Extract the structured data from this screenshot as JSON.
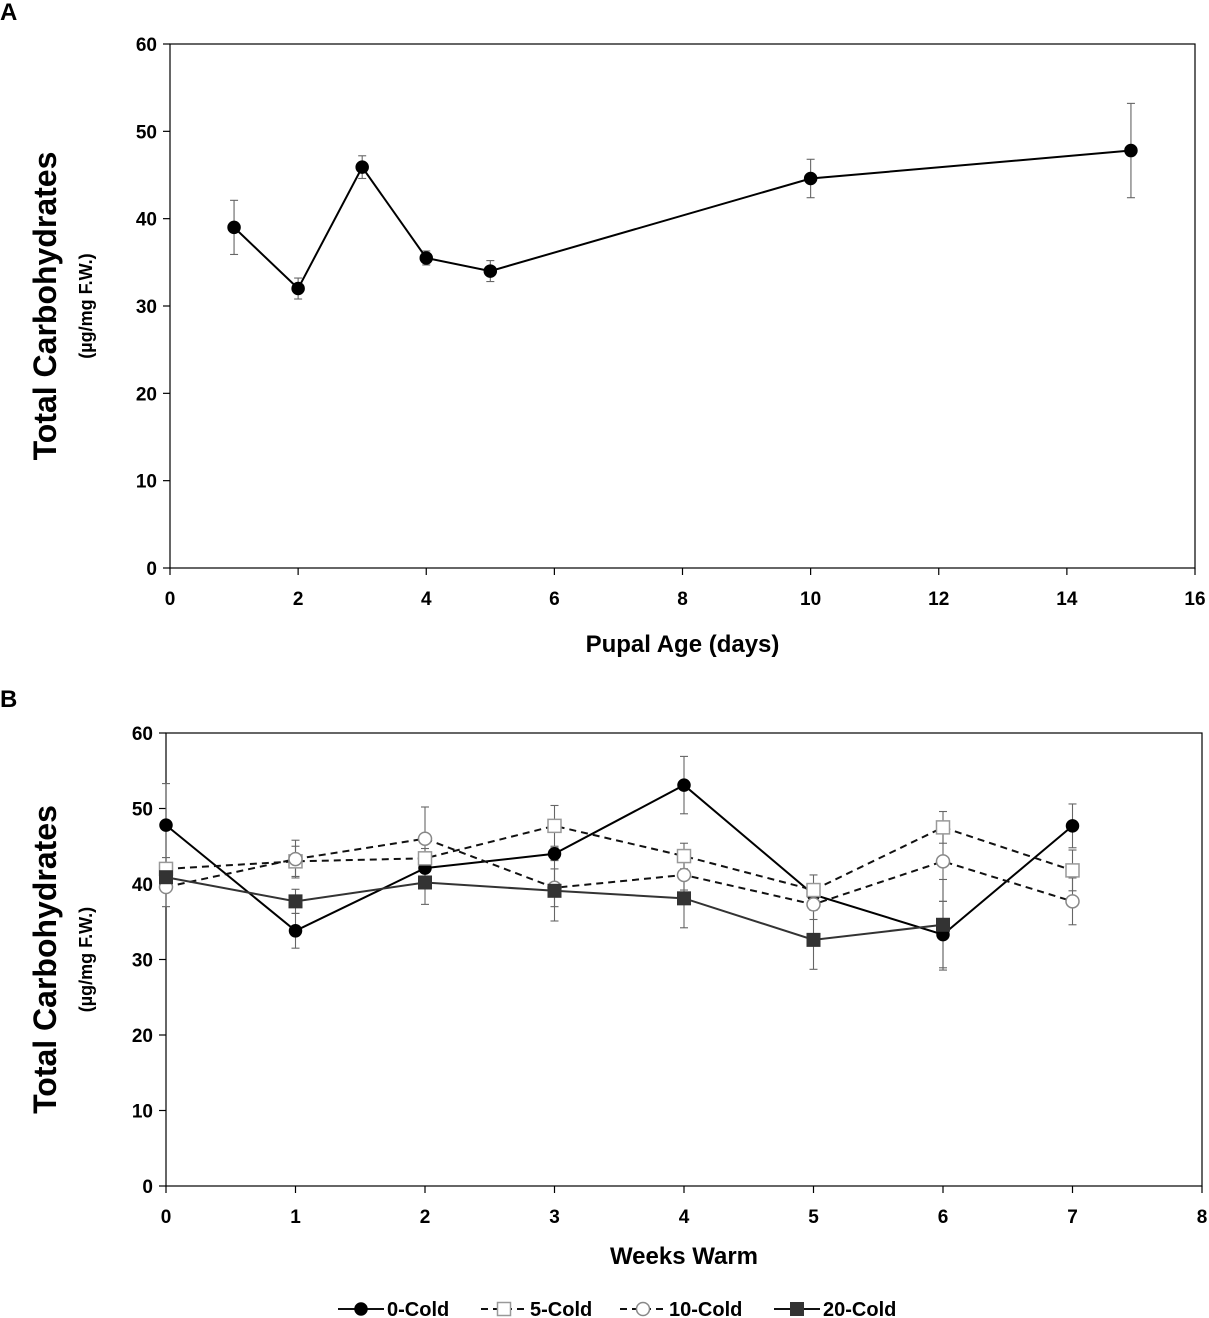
{
  "chart_data": [
    {
      "panel": "A",
      "type": "line",
      "title": "",
      "xlabel": "Pupal Age (days)",
      "ylabel": "Total Carbohydrates",
      "ylabel_unit": "(µg/mg F.W.)",
      "xlim": [
        0,
        16
      ],
      "ylim": [
        0,
        60
      ],
      "xticks": [
        "0",
        "2",
        "4",
        "6",
        "8",
        "10",
        "12",
        "14",
        "16"
      ],
      "yticks": [
        "0",
        "10",
        "20",
        "30",
        "40",
        "50",
        "60"
      ],
      "grid": false,
      "series": [
        {
          "name": "Total Carbohydrates",
          "color": "#000000",
          "marker": "circle-filled",
          "dash": "solid",
          "x": [
            1,
            2,
            3,
            4,
            5,
            10,
            15
          ],
          "values": [
            39.0,
            32.0,
            45.9,
            35.5,
            34.0,
            44.6,
            47.8
          ],
          "errors": [
            3.1,
            1.2,
            1.3,
            0.8,
            1.2,
            2.2,
            5.4
          ]
        }
      ]
    },
    {
      "panel": "B",
      "type": "line",
      "title": "",
      "xlabel": "Weeks Warm",
      "ylabel": "Total Carbohydrates",
      "ylabel_unit": "(µg/mg F.W.)",
      "xlim": [
        0,
        8
      ],
      "ylim": [
        0,
        60
      ],
      "xticks": [
        "0",
        "1",
        "2",
        "3",
        "4",
        "5",
        "6",
        "7",
        "8"
      ],
      "yticks": [
        "0",
        "10",
        "20",
        "30",
        "40",
        "50",
        "60"
      ],
      "grid": false,
      "legend_position": "bottom",
      "series": [
        {
          "name": "0-Cold",
          "color": "#000000",
          "marker": "circle-filled",
          "dash": "solid",
          "x": [
            0,
            1,
            2,
            3,
            4,
            5,
            6,
            7
          ],
          "values": [
            47.8,
            33.8,
            42.1,
            44.0,
            53.1,
            38.6,
            33.3,
            47.7
          ],
          "errors": [
            5.5,
            2.3,
            2.0,
            0.8,
            3.8,
            1.3,
            4.4,
            2.9
          ]
        },
        {
          "name": "5-Cold",
          "color": "#888888",
          "marker": "square-open",
          "dash": "dashed",
          "x": [
            0,
            1,
            2,
            3,
            4,
            5,
            6,
            7
          ],
          "values": [
            42.0,
            43.0,
            43.4,
            47.7,
            43.7,
            39.2,
            47.5,
            41.8
          ],
          "errors": [
            1.5,
            2.0,
            1.3,
            2.7,
            1.7,
            2.0,
            2.1,
            2.7
          ]
        },
        {
          "name": "10-Cold",
          "color": "#888888",
          "marker": "circle-open",
          "dash": "dashed",
          "x": [
            0,
            1,
            2,
            3,
            4,
            5,
            6,
            7
          ],
          "values": [
            39.6,
            43.3,
            46.0,
            39.5,
            41.2,
            37.3,
            43.0,
            37.7
          ],
          "errors": [
            2.6,
            2.5,
            4.2,
            2.5,
            2.0,
            2.0,
            5.3,
            3.1
          ]
        },
        {
          "name": "20-Cold",
          "color": "#333333",
          "marker": "square-filled",
          "dash": "solid",
          "x": [
            0,
            1,
            2,
            3,
            4,
            5,
            6
          ],
          "values": [
            40.9,
            37.7,
            40.2,
            39.1,
            38.1,
            32.6,
            34.6
          ],
          "errors": [
            1.6,
            1.6,
            2.9,
            4.0,
            3.9,
            3.9,
            6.0
          ]
        }
      ]
    }
  ]
}
